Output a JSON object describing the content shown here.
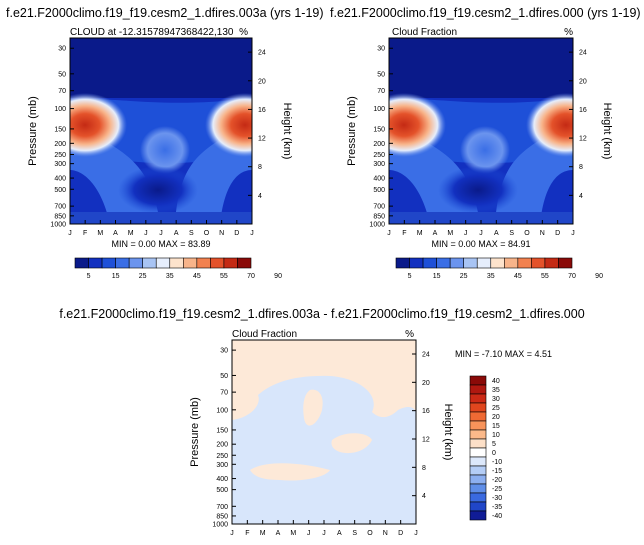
{
  "chart_data": [
    {
      "type": "heatmap",
      "title": "f.e21.F2000climo.f19_f19.cesm2_1.dfires.003a (yrs 1-19)",
      "subtitle": "CLOUD at -12.31578947368422,130",
      "units": "%",
      "xlabel": "",
      "ylabel": "Pressure (mb)",
      "ylabel_right": "Height (km)",
      "x_ticks": [
        "J",
        "F",
        "M",
        "A",
        "M",
        "J",
        "J",
        "A",
        "S",
        "O",
        "N",
        "D",
        "J"
      ],
      "y_ticks": [
        "30",
        "50",
        "70",
        "100",
        "150",
        "200",
        "250",
        "300",
        "400",
        "500",
        "700",
        "850",
        "1000"
      ],
      "y_ticks_right": [
        "24",
        "20",
        "16",
        "12",
        "8",
        "4"
      ],
      "min_max_text": "MIN =   0.00 MAX =  83.89",
      "colorbar_levels": [
        "5",
        "15",
        "25",
        "35",
        "45",
        "55",
        "70",
        "90"
      ]
    },
    {
      "type": "heatmap",
      "title": "f.e21.F2000climo.f19_f19.cesm2_1.dfires.000 (yrs 1-19)",
      "subtitle": "Cloud Fraction",
      "units": "%",
      "xlabel": "",
      "ylabel": "Pressure (mb)",
      "ylabel_right": "Height (km)",
      "x_ticks": [
        "J",
        "F",
        "M",
        "A",
        "M",
        "J",
        "J",
        "A",
        "S",
        "O",
        "N",
        "D",
        "J"
      ],
      "y_ticks": [
        "30",
        "50",
        "70",
        "100",
        "150",
        "200",
        "250",
        "300",
        "400",
        "500",
        "700",
        "850",
        "1000"
      ],
      "y_ticks_right": [
        "24",
        "20",
        "16",
        "12",
        "8",
        "4"
      ],
      "min_max_text": "MIN =   0.00 MAX =  84.91",
      "colorbar_levels": [
        "5",
        "15",
        "25",
        "35",
        "45",
        "55",
        "70",
        "90"
      ]
    },
    {
      "type": "heatmap",
      "title": "f.e21.F2000climo.f19_f19.cesm2_1.dfires.003a - f.e21.F2000climo.f19_f19.cesm2_1.dfires.000",
      "subtitle": "Cloud Fraction",
      "units": "%",
      "xlabel": "",
      "ylabel": "Pressure (mb)",
      "ylabel_right": "Height (km)",
      "x_ticks": [
        "J",
        "F",
        "M",
        "A",
        "M",
        "J",
        "J",
        "A",
        "S",
        "O",
        "N",
        "D",
        "J"
      ],
      "y_ticks": [
        "30",
        "50",
        "70",
        "100",
        "150",
        "200",
        "250",
        "300",
        "400",
        "500",
        "700",
        "850",
        "1000"
      ],
      "y_ticks_right": [
        "24",
        "20",
        "16",
        "12",
        "8",
        "4"
      ],
      "min_max_text": "MIN =  -7.10 MAX =   4.51",
      "colorbar_levels": [
        "40",
        "35",
        "30",
        "25",
        "20",
        "15",
        "10",
        "5",
        "0",
        "-10",
        "-15",
        "-20",
        "-25",
        "-30",
        "-35",
        "-40"
      ]
    }
  ],
  "colors": {
    "cmap_levels": [
      "#0a1a8a",
      "#1230c0",
      "#1e50d8",
      "#3a6ee6",
      "#6b94ee",
      "#a8c4f4",
      "#e6eefc",
      "#fde3cc",
      "#f8b48a",
      "#f2814f",
      "#e4522a",
      "#c42a14",
      "#8a0a08"
    ],
    "diff_cmap": [
      "#8a0a08",
      "#b01810",
      "#cc2a16",
      "#e0461e",
      "#ef6a34",
      "#f7935a",
      "#fbb98a",
      "#fde0c8",
      "#ffffff",
      "#dce8fb",
      "#b4cdf6",
      "#8caff0",
      "#5f8ee8",
      "#3a6ae0",
      "#2046c8",
      "#101c96"
    ],
    "diff_bg": "#fde9d8",
    "diff_blue": "#d8e6fb"
  }
}
